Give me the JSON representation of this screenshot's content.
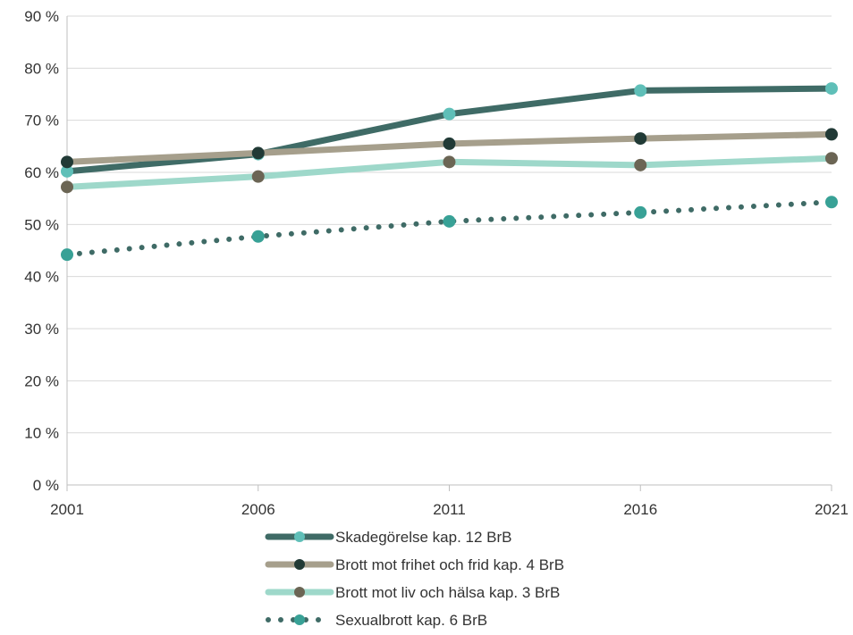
{
  "chart_data": {
    "type": "line",
    "title": "",
    "xlabel": "",
    "ylabel": "",
    "categories": [
      "2001",
      "2006",
      "2011",
      "2016",
      "2021"
    ],
    "yticks": [
      "0 %",
      "10 %",
      "20 %",
      "30 %",
      "40 %",
      "50 %",
      "60 %",
      "70 %",
      "80 %",
      "90 %"
    ],
    "ylim": [
      0,
      90
    ],
    "grid": true,
    "legend_position": "bottom",
    "series": [
      {
        "name": "Skadegörelse kap. 12 BrB",
        "values": [
          60.2,
          63.5,
          71.2,
          75.7,
          76.1
        ],
        "line_color": "#3f6b66",
        "marker_color": "#5fbfb8",
        "style": "solid"
      },
      {
        "name": "Brott mot frihet och frid kap. 4 BrB",
        "values": [
          62.0,
          63.7,
          65.5,
          66.5,
          67.3
        ],
        "line_color": "#a69f8c",
        "marker_color": "#213a36",
        "style": "solid"
      },
      {
        "name": "Brott mot liv och hälsa kap. 3 BrB",
        "values": [
          57.2,
          59.2,
          62.0,
          61.4,
          62.7
        ],
        "line_color": "#9ed8ca",
        "marker_color": "#6b6554",
        "style": "solid"
      },
      {
        "name": "Sexualbrott kap. 6 BrB",
        "values": [
          44.2,
          47.7,
          50.6,
          52.3,
          54.3
        ],
        "line_color": "#3f6b66",
        "marker_color": "#38a196",
        "style": "dotted"
      }
    ]
  }
}
